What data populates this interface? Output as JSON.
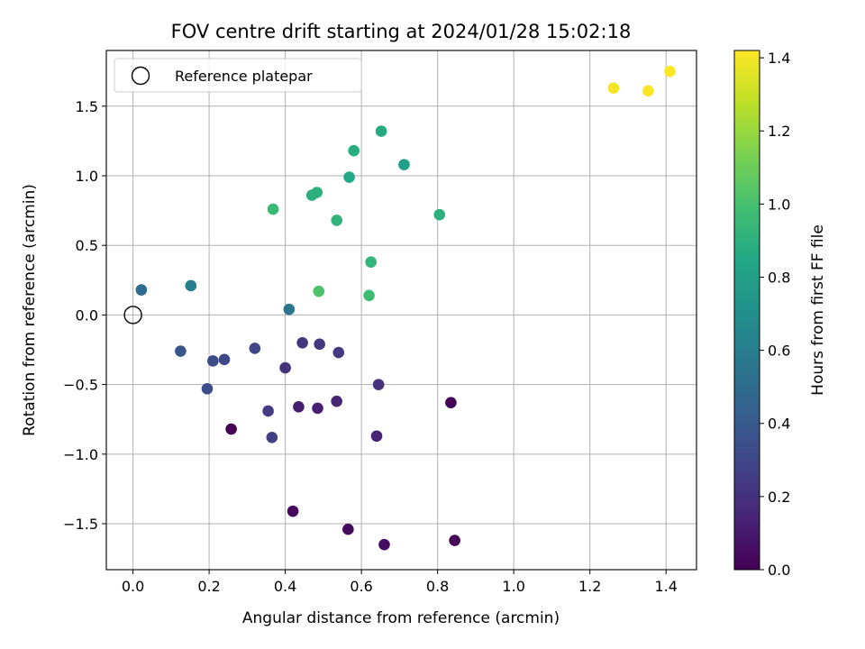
{
  "chart_data": {
    "type": "scatter",
    "title": "FOV centre drift starting at 2024/01/28 15:02:18",
    "xlabel": "Angular distance from reference (arcmin)",
    "ylabel": "Rotation from reference (arcmin)",
    "xlim": [
      -0.07,
      1.48
    ],
    "ylim": [
      -1.83,
      1.9
    ],
    "xticks": [
      0.0,
      0.2,
      0.4,
      0.6,
      0.8,
      1.0,
      1.2,
      1.4
    ],
    "xtick_labels": [
      "0.0",
      "0.2",
      "0.4",
      "0.6",
      "0.8",
      "1.0",
      "1.2",
      "1.4"
    ],
    "yticks": [
      -1.5,
      -1.0,
      -0.5,
      0.0,
      0.5,
      1.0,
      1.5
    ],
    "ytick_labels": [
      "−1.5",
      "−1.0",
      "−0.5",
      "0.0",
      "0.5",
      "1.0",
      "1.5"
    ],
    "grid": true,
    "legend": {
      "position": "top-left",
      "entries": [
        {
          "label": "Reference platepar",
          "marker": "open-circle"
        }
      ]
    },
    "reference_point": {
      "x": 0.0,
      "y": 0.0
    },
    "colorbar": {
      "label": "Hours from first FF file",
      "colormap": "viridis",
      "range": [
        0.0,
        1.42
      ],
      "ticks": [
        0.0,
        0.2,
        0.4,
        0.6,
        0.8,
        1.0,
        1.2,
        1.4
      ],
      "tick_labels": [
        "0.0",
        "0.2",
        "0.4",
        "0.6",
        "0.8",
        "1.0",
        "1.2",
        "1.4"
      ]
    },
    "points": [
      {
        "x": 0.42,
        "y": -1.41,
        "hours": 0.03
      },
      {
        "x": 0.565,
        "y": -1.54,
        "hours": 0.04
      },
      {
        "x": 0.66,
        "y": -1.65,
        "hours": 0.05
      },
      {
        "x": 0.845,
        "y": -1.62,
        "hours": 0.02
      },
      {
        "x": 0.835,
        "y": -0.63,
        "hours": 0.01
      },
      {
        "x": 0.258,
        "y": -0.82,
        "hours": 0.0
      },
      {
        "x": 0.435,
        "y": -0.66,
        "hours": 0.12
      },
      {
        "x": 0.485,
        "y": -0.67,
        "hours": 0.13
      },
      {
        "x": 0.535,
        "y": -0.62,
        "hours": 0.15
      },
      {
        "x": 0.64,
        "y": -0.87,
        "hours": 0.14
      },
      {
        "x": 0.645,
        "y": -0.5,
        "hours": 0.2
      },
      {
        "x": 0.355,
        "y": -0.69,
        "hours": 0.25
      },
      {
        "x": 0.365,
        "y": -0.88,
        "hours": 0.26
      },
      {
        "x": 0.4,
        "y": -0.38,
        "hours": 0.2
      },
      {
        "x": 0.445,
        "y": -0.2,
        "hours": 0.22
      },
      {
        "x": 0.49,
        "y": -0.21,
        "hours": 0.23
      },
      {
        "x": 0.54,
        "y": -0.27,
        "hours": 0.24
      },
      {
        "x": 0.32,
        "y": -0.24,
        "hours": 0.3
      },
      {
        "x": 0.24,
        "y": -0.32,
        "hours": 0.3
      },
      {
        "x": 0.21,
        "y": -0.33,
        "hours": 0.32
      },
      {
        "x": 0.195,
        "y": -0.53,
        "hours": 0.33
      },
      {
        "x": 0.125,
        "y": -0.26,
        "hours": 0.38
      },
      {
        "x": 0.41,
        "y": 0.04,
        "hours": 0.55
      },
      {
        "x": 0.022,
        "y": 0.18,
        "hours": 0.5
      },
      {
        "x": 0.152,
        "y": 0.21,
        "hours": 0.6
      },
      {
        "x": 0.368,
        "y": 0.76,
        "hours": 0.95
      },
      {
        "x": 0.47,
        "y": 0.86,
        "hours": 0.9
      },
      {
        "x": 0.483,
        "y": 0.88,
        "hours": 0.9
      },
      {
        "x": 0.535,
        "y": 0.68,
        "hours": 0.92
      },
      {
        "x": 0.568,
        "y": 0.99,
        "hours": 0.85
      },
      {
        "x": 0.58,
        "y": 1.18,
        "hours": 0.88
      },
      {
        "x": 0.652,
        "y": 1.32,
        "hours": 0.87
      },
      {
        "x": 0.712,
        "y": 1.08,
        "hours": 0.8
      },
      {
        "x": 0.805,
        "y": 0.72,
        "hours": 0.9
      },
      {
        "x": 0.625,
        "y": 0.38,
        "hours": 0.93
      },
      {
        "x": 0.62,
        "y": 0.14,
        "hours": 0.97
      },
      {
        "x": 0.488,
        "y": 0.17,
        "hours": 1.02
      },
      {
        "x": 1.262,
        "y": 1.63,
        "hours": 1.4
      },
      {
        "x": 1.353,
        "y": 1.61,
        "hours": 1.41
      },
      {
        "x": 1.41,
        "y": 1.75,
        "hours": 1.42
      }
    ]
  }
}
